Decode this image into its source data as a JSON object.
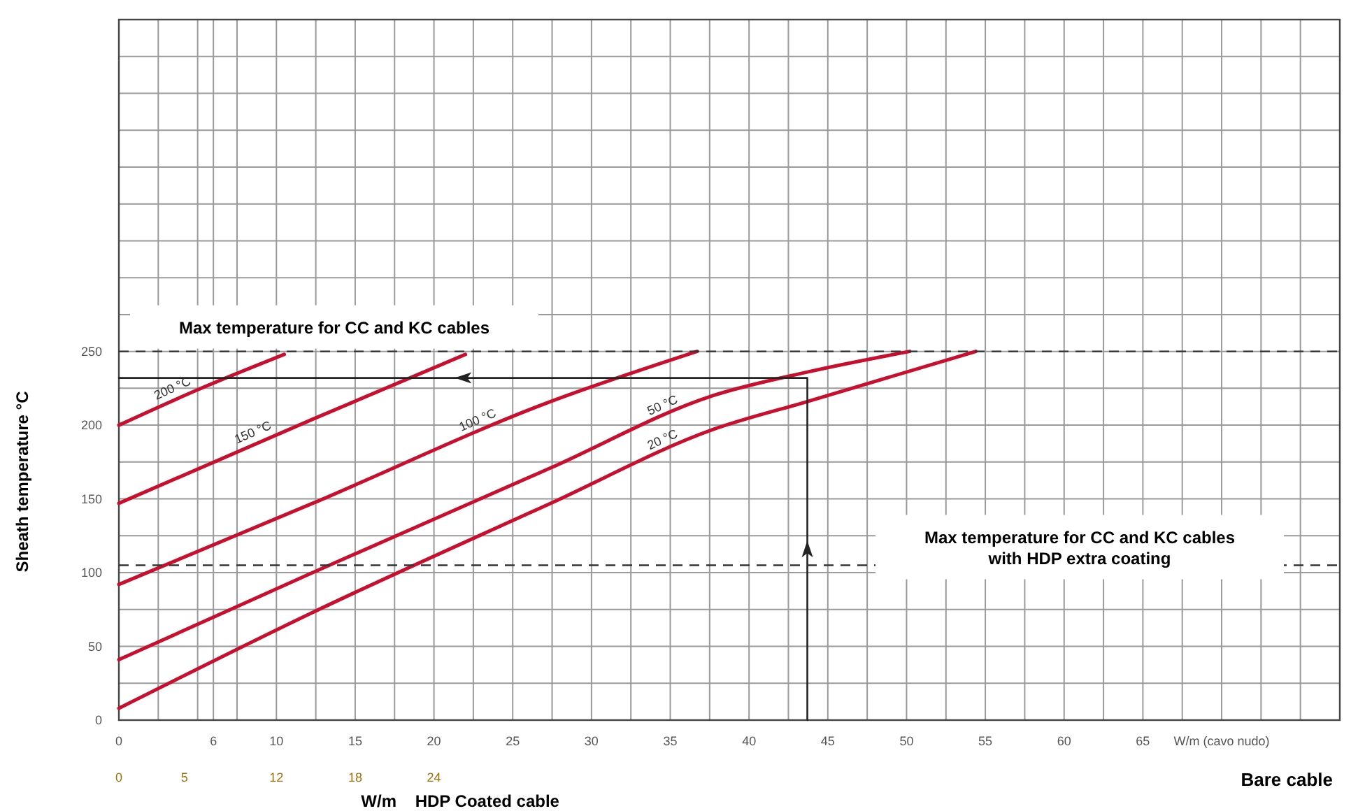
{
  "chart_data": {
    "type": "line",
    "ylabel": "Sheath temperature °C",
    "xlabel": "Bare cable",
    "x2label": "W/m    HDP Coated cable",
    "xlim": [
      0,
      77.5
    ],
    "ylim": [
      0,
      475
    ],
    "x2lim": [
      0,
      93
    ],
    "xticks": [
      0,
      {
        "value": 2.5,
        "label": null
      },
      {
        "value": 5,
        "label": null
      },
      6,
      {
        "value": 7.5,
        "label": null
      },
      10,
      {
        "value": 12.5,
        "label": null
      },
      15,
      {
        "value": 17.5,
        "label": null
      },
      20,
      {
        "value": 22.5,
        "label": null
      },
      25,
      {
        "value": 27.5,
        "label": null
      },
      30,
      {
        "value": 32.5,
        "label": null
      },
      35,
      {
        "value": 37.5,
        "label": null
      },
      40,
      {
        "value": 42.5,
        "label": null
      },
      45,
      {
        "value": 47.5,
        "label": null
      },
      50,
      {
        "value": 52.5,
        "label": null
      },
      55,
      {
        "value": 57.5,
        "label": null
      },
      60,
      {
        "value": 62.5,
        "label": null
      },
      65,
      {
        "value": 67.5,
        "label": null
      },
      {
        "value": 70,
        "label": "W/m (cavo nudo)"
      },
      {
        "value": 72.5,
        "label": null
      },
      {
        "value": 75,
        "label": null
      },
      {
        "value": 77.5,
        "label": null
      }
    ],
    "x2ticks": [
      0,
      5,
      12,
      18,
      24
    ],
    "yticks": [
      0,
      {
        "value": 25,
        "label": null
      },
      50,
      {
        "value": 75,
        "label": null
      },
      100,
      {
        "value": 125,
        "label": null
      },
      150,
      {
        "value": 175,
        "label": null
      },
      200,
      {
        "value": 225,
        "label": null
      },
      250,
      {
        "value": 275,
        "label": null
      },
      {
        "value": 300,
        "label": null
      },
      {
        "value": 325,
        "label": null
      },
      {
        "value": 350,
        "label": null
      },
      {
        "value": 375,
        "label": null
      },
      {
        "value": 400,
        "label": null
      },
      {
        "value": 425,
        "label": null
      },
      {
        "value": 450,
        "label": null
      },
      {
        "value": 475,
        "label": null
      }
    ],
    "grid": true,
    "legend": false,
    "marker": "none",
    "line_style": "solid",
    "series": [
      {
        "name": "200 °C",
        "color": "#c8102e",
        "x": [
          0,
          5,
          10.5
        ],
        "values": [
          200,
          224,
          248
        ]
      },
      {
        "name": "150 °C",
        "color": "#c8102e",
        "x": [
          0,
          12.3,
          22
        ],
        "values": [
          147,
          204,
          248
        ]
      },
      {
        "name": "100 °C",
        "color": "#c8102e",
        "x": [
          0,
          12.3,
          27.4,
          36.7
        ],
        "values": [
          92,
          147,
          216,
          250
        ]
      },
      {
        "name": "50 °C",
        "color": "#c8102e",
        "x": [
          0,
          12.3,
          27.4,
          37.7,
          43.7,
          50.2
        ],
        "values": [
          41,
          100,
          171,
          220,
          236,
          250
        ]
      },
      {
        "name": "20 °C",
        "color": "#c8102e",
        "x": [
          0,
          12.3,
          27.4,
          37.7,
          43.7,
          54.4
        ],
        "values": [
          8,
          73,
          147,
          197,
          216,
          250
        ]
      },
      {
        "color": "#222222",
        "x": [
          0,
          43.7,
          43.7
        ],
        "values": [
          232,
          232,
          0
        ]
      }
    ],
    "ref_lines": [
      {
        "axis": "y",
        "value": 250,
        "label": "Max temperature for CC and KC cables",
        "line_style": "dashed",
        "color": "#333333"
      },
      {
        "axis": "y",
        "value": 105,
        "label": "Max temperature for CC and KC cables\nwith HDP extra coating",
        "line_style": "dashed",
        "color": "#333333"
      }
    ]
  }
}
